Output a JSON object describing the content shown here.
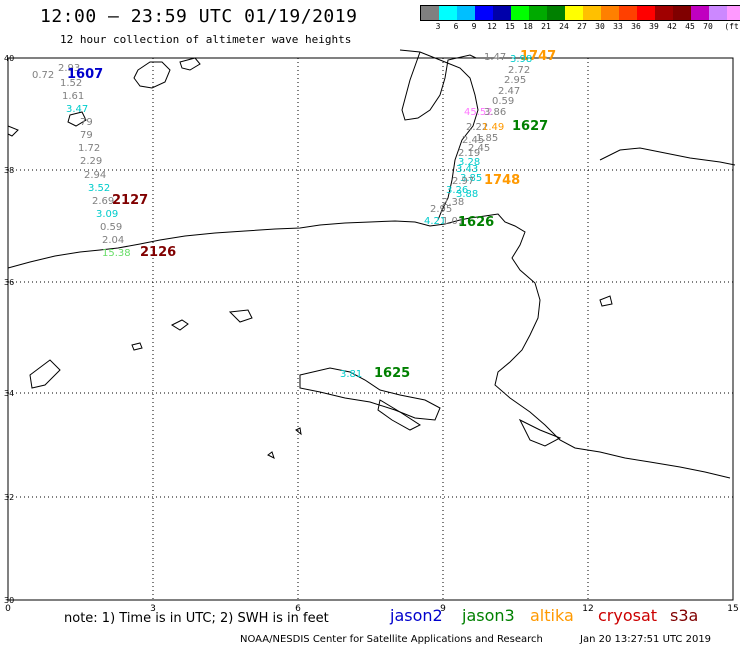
{
  "header": {
    "title": "12:00 – 23:59 UTC 01/19/2019",
    "subtitle": "12 hour collection of altimeter wave heights"
  },
  "scale": {
    "colors": [
      "#808080",
      "#00ffff",
      "#00bfff",
      "#0000ff",
      "#0000aa",
      "#00ff00",
      "#00aa00",
      "#008000",
      "#ffff00",
      "#ffc000",
      "#ff8000",
      "#ff4000",
      "#ff0000",
      "#a00000",
      "#800000",
      "#c000c0",
      "#cc88ff",
      "#ff99ff",
      "#000000"
    ],
    "labels": [
      "3",
      "6",
      "9",
      "12",
      "15",
      "18",
      "21",
      "24",
      "27",
      "30",
      "33",
      "36",
      "39",
      "42",
      "45",
      "70",
      "(ft)"
    ]
  },
  "axes": {
    "x_ticks": [
      "0",
      "3",
      "6",
      "9",
      "12",
      "15"
    ],
    "y_ticks": [
      "40",
      "38",
      "36",
      "34",
      "32",
      "30"
    ]
  },
  "readings": [
    {
      "v": "0.72",
      "c": "#808080"
    },
    {
      "v": "2.93",
      "c": "#808080"
    },
    {
      "v": "1607",
      "c": "#0000cc"
    },
    {
      "v": "1.52",
      "c": "#808080"
    },
    {
      "v": "1.61",
      "c": "#808080"
    },
    {
      "v": "3.47",
      "c": "#00cccc"
    },
    {
      "v": "79",
      "c": "#808080"
    },
    {
      "v": "79",
      "c": "#808080"
    },
    {
      "v": "1.72",
      "c": "#808080"
    },
    {
      "v": "2.29",
      "c": "#808080"
    },
    {
      "v": "2.94",
      "c": "#808080"
    },
    {
      "v": "3.52",
      "c": "#00cccc"
    },
    {
      "v": "2.69",
      "c": "#808080"
    },
    {
      "v": "2127",
      "c": "#800000"
    },
    {
      "v": "3.09",
      "c": "#00cccc"
    },
    {
      "v": "0.59",
      "c": "#808080"
    },
    {
      "v": "2.04",
      "c": "#808080"
    },
    {
      "v": "15.38",
      "c": "#66dd66"
    },
    {
      "v": "2126",
      "c": "#800000"
    },
    {
      "v": "1.47",
      "c": "#808080"
    },
    {
      "v": "1747",
      "c": "#ff9900"
    },
    {
      "v": "3.98",
      "c": "#00cccc"
    },
    {
      "v": "2.72",
      "c": "#808080"
    },
    {
      "v": "2.95",
      "c": "#808080"
    },
    {
      "v": "2.47",
      "c": "#808080"
    },
    {
      "v": "0.59",
      "c": "#808080"
    },
    {
      "v": "45.52",
      "c": "#ff77ff"
    },
    {
      "v": "3.86",
      "c": "#808080"
    },
    {
      "v": "2.22",
      "c": "#808080"
    },
    {
      "v": "1.49",
      "c": "#ff9900"
    },
    {
      "v": "1627",
      "c": "#008000"
    },
    {
      "v": "1.85",
      "c": "#808080"
    },
    {
      "v": "2.45",
      "c": "#808080"
    },
    {
      "v": "2.45",
      "c": "#808080"
    },
    {
      "v": "2.19",
      "c": "#808080"
    },
    {
      "v": "3.28",
      "c": "#00cccc"
    },
    {
      "v": "3.43",
      "c": "#00cccc"
    },
    {
      "v": "3.85",
      "c": "#00cccc"
    },
    {
      "v": "1748",
      "c": "#ff9900"
    },
    {
      "v": "2.97",
      "c": "#808080"
    },
    {
      "v": "3.26",
      "c": "#00cccc"
    },
    {
      "v": "3.88",
      "c": "#00cccc"
    },
    {
      "v": "2.38",
      "c": "#808080"
    },
    {
      "v": "2.95",
      "c": "#808080"
    },
    {
      "v": "4.21",
      "c": "#00cccc"
    },
    {
      "v": "1.01",
      "c": "#808080"
    },
    {
      "v": "1626",
      "c": "#008000"
    },
    {
      "v": "3.81",
      "c": "#00cccc"
    },
    {
      "v": "1625",
      "c": "#008000"
    }
  ],
  "footer": {
    "note": "note: 1) Time is in UTC; 2) SWH is in feet",
    "legend": [
      {
        "name": "jason2",
        "color": "#0000cc"
      },
      {
        "name": "jason3",
        "color": "#008000"
      },
      {
        "name": "altika",
        "color": "#ff9900"
      },
      {
        "name": "cryosat",
        "color": "#cc0000"
      },
      {
        "name": "s3a",
        "color": "#800000"
      }
    ],
    "credit": "NOAA/NESDIS Center for Satellite Applications and Research",
    "stamp": "Jan 20 13:27:51 UTC 2019"
  }
}
